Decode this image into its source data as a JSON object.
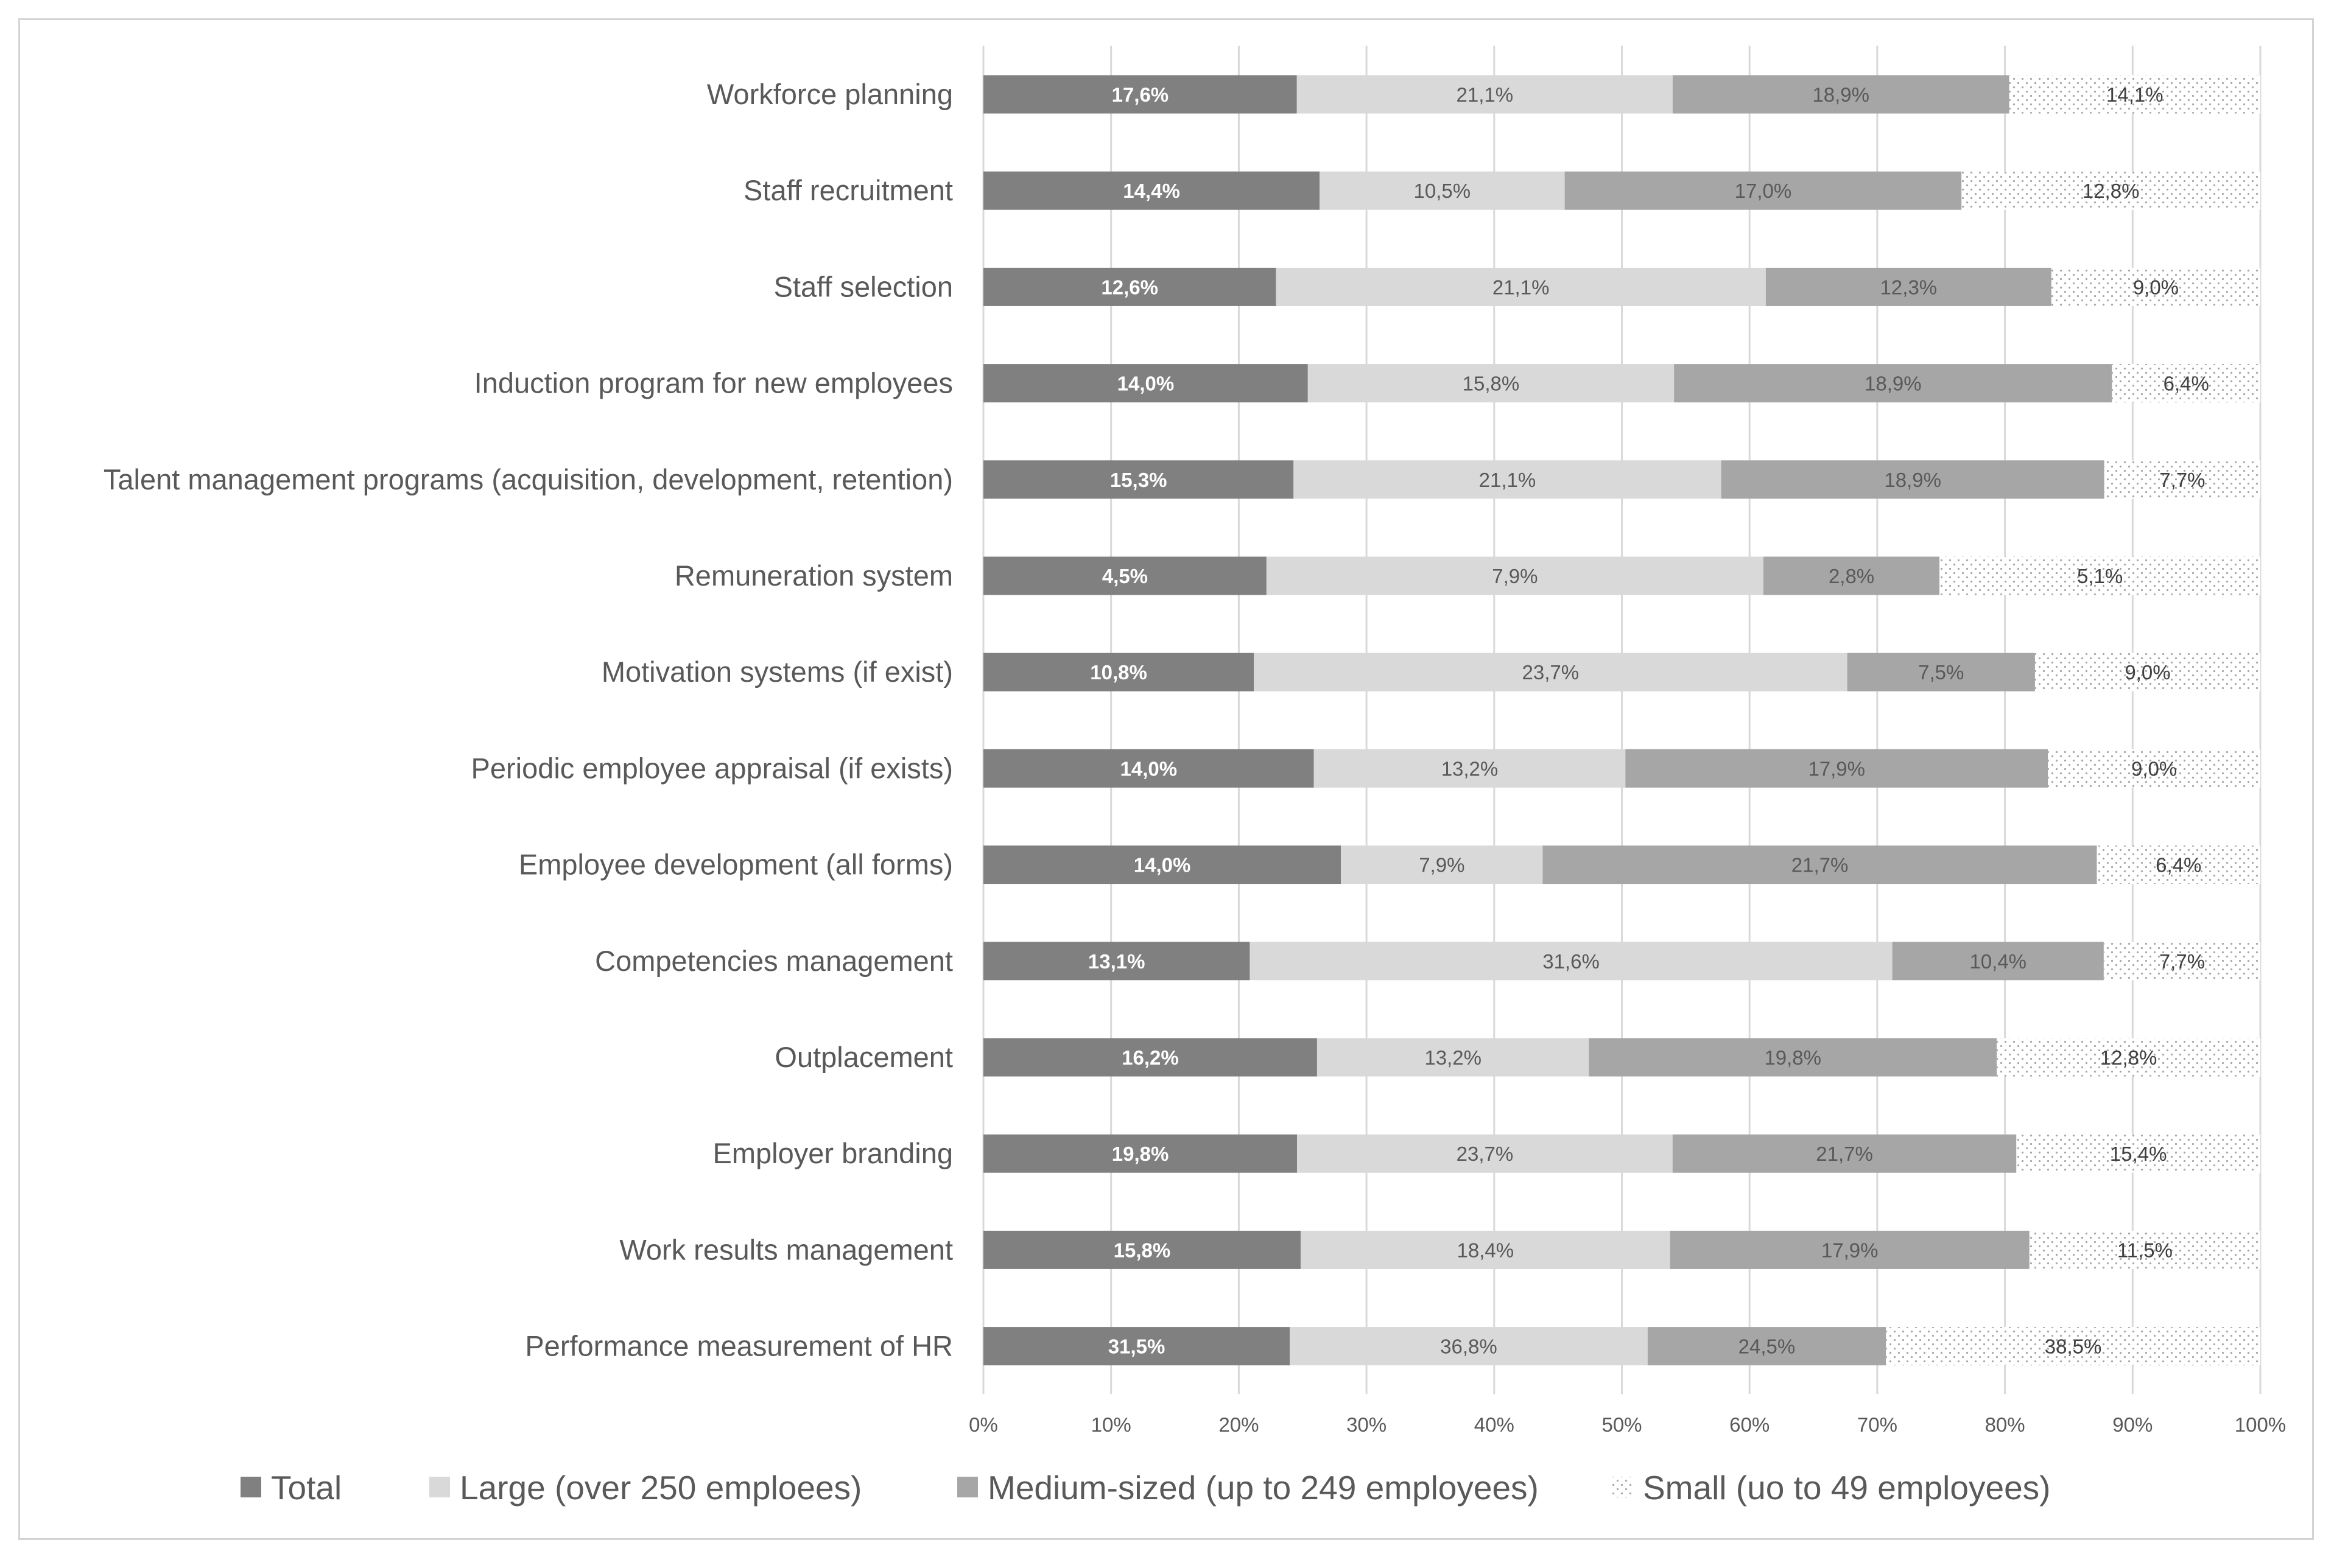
{
  "chart_data": {
    "type": "bar",
    "orientation": "horizontal",
    "stacking": "percent",
    "title": "",
    "xlabel": "",
    "ylabel": "",
    "xlim": [
      0,
      100
    ],
    "grid": true,
    "legend_position": "bottom",
    "x_ticks": [
      "0%",
      "10%",
      "20%",
      "30%",
      "40%",
      "50%",
      "60%",
      "70%",
      "80%",
      "90%",
      "100%"
    ],
    "categories": [
      "Workforce planning",
      "Staff recruitment",
      "Staff selection",
      "Induction program for new employees",
      "Talent management programs (acquisition, development, retention)",
      "Remuneration system",
      "Motivation systems (if exist)",
      "Periodic employee appraisal (if exists)",
      "Employee development (all forms)",
      "Competencies management",
      "Outplacement",
      "Employer branding",
      "Work results management",
      "Performance measurement of HR"
    ],
    "series": [
      {
        "name": "Total",
        "color": "#808080",
        "label_color": "#ffffff",
        "pattern": "solid",
        "values": [
          17.6,
          14.4,
          12.6,
          14.0,
          15.3,
          4.5,
          10.8,
          14.0,
          14.0,
          13.1,
          16.2,
          19.8,
          15.8,
          31.5
        ],
        "labels": [
          "17,6%",
          "14,4%",
          "12,6%",
          "14,0%",
          "15,3%",
          "4,5%",
          "10,8%",
          "14,0%",
          "14,0%",
          "13,1%",
          "16,2%",
          "19,8%",
          "15,8%",
          "31,5%"
        ]
      },
      {
        "name": "Large (over 250 emploees)",
        "color": "#d9d9d9",
        "label_color": "#595959",
        "pattern": "solid",
        "values": [
          21.1,
          10.5,
          21.1,
          15.8,
          21.1,
          7.9,
          23.7,
          13.2,
          7.9,
          31.6,
          13.2,
          23.7,
          18.4,
          36.8
        ],
        "labels": [
          "21,1%",
          "10,5%",
          "21,1%",
          "15,8%",
          "21,1%",
          "7,9%",
          "23,7%",
          "13,2%",
          "7,9%",
          "31,6%",
          "13,2%",
          "23,7%",
          "18,4%",
          "36,8%"
        ]
      },
      {
        "name": "Medium-sized (up to 249 employees)",
        "color": "#a6a6a6",
        "label_color": "#595959",
        "pattern": "solid",
        "values": [
          18.9,
          17.0,
          12.3,
          18.9,
          18.9,
          2.8,
          7.5,
          17.9,
          21.7,
          10.4,
          19.8,
          21.7,
          17.9,
          24.5
        ],
        "labels": [
          "18,9%",
          "17,0%",
          "12,3%",
          "18,9%",
          "18,9%",
          "2,8%",
          "7,5%",
          "17,9%",
          "21,7%",
          "10,4%",
          "19,8%",
          "21,7%",
          "17,9%",
          "24,5%"
        ]
      },
      {
        "name": "Small (uo to 49 employees)",
        "color": "#ffffff",
        "dot_color": "#a6a6a6",
        "label_color": "#404040",
        "pattern": "dotted",
        "values": [
          14.1,
          12.8,
          9.0,
          6.4,
          7.7,
          5.1,
          9.0,
          9.0,
          6.4,
          7.7,
          12.8,
          15.4,
          11.5,
          38.5
        ],
        "labels": [
          "14,1%",
          "12,8%",
          "9,0%",
          "6,4%",
          "7,7%",
          "5,1%",
          "9,0%",
          "9,0%",
          "6,4%",
          "7,7%",
          "12,8%",
          "15,4%",
          "11,5%",
          "38,5%"
        ]
      }
    ],
    "gridline_color": "#d9d9d9"
  }
}
